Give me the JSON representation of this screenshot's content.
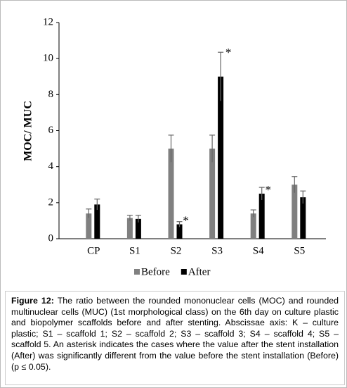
{
  "chart_data": {
    "type": "bar",
    "y_label": "MOC/ MUC",
    "categories": [
      "CP",
      "S1",
      "S2",
      "S3",
      "S4",
      "S5"
    ],
    "series": [
      {
        "name": "Before",
        "color": "#808080",
        "values": [
          1.4,
          1.15,
          5.0,
          5.0,
          1.4,
          3.0
        ],
        "errors": [
          0.25,
          0.15,
          0.75,
          0.75,
          0.2,
          0.45
        ]
      },
      {
        "name": "After",
        "color": "#000000",
        "values": [
          1.9,
          1.1,
          0.8,
          9.0,
          2.5,
          2.3
        ],
        "errors": [
          0.3,
          0.2,
          0.15,
          1.35,
          0.35,
          0.35
        ],
        "significance_marker": "*",
        "significant": [
          false,
          false,
          true,
          true,
          true,
          false
        ]
      }
    ],
    "ylim": [
      0,
      12
    ],
    "yticks": [
      0,
      2,
      4,
      6,
      8,
      10,
      12
    ],
    "grid": false,
    "legend": "bottom"
  },
  "caption": {
    "label": "Figure 12:",
    "text": "The ratio between the rounded mononuclear cells (MOC) and rounded multinuclear cells (MUC) (1st morphological class) on the 6th day on culture plastic and biopolymer scaffolds before and after stenting. Abscissae axis: K – culture plastic; S1 – scaffold 1; S2 – scaffold 2; S3 – scaffold 3; S4 – scaffold 4; S5 – scaffold 5. An asterisk indicates the cases where the value after the stent installation (After) was significantly different from the value before the stent installation (Before) (p ≤ 0.05)."
  }
}
